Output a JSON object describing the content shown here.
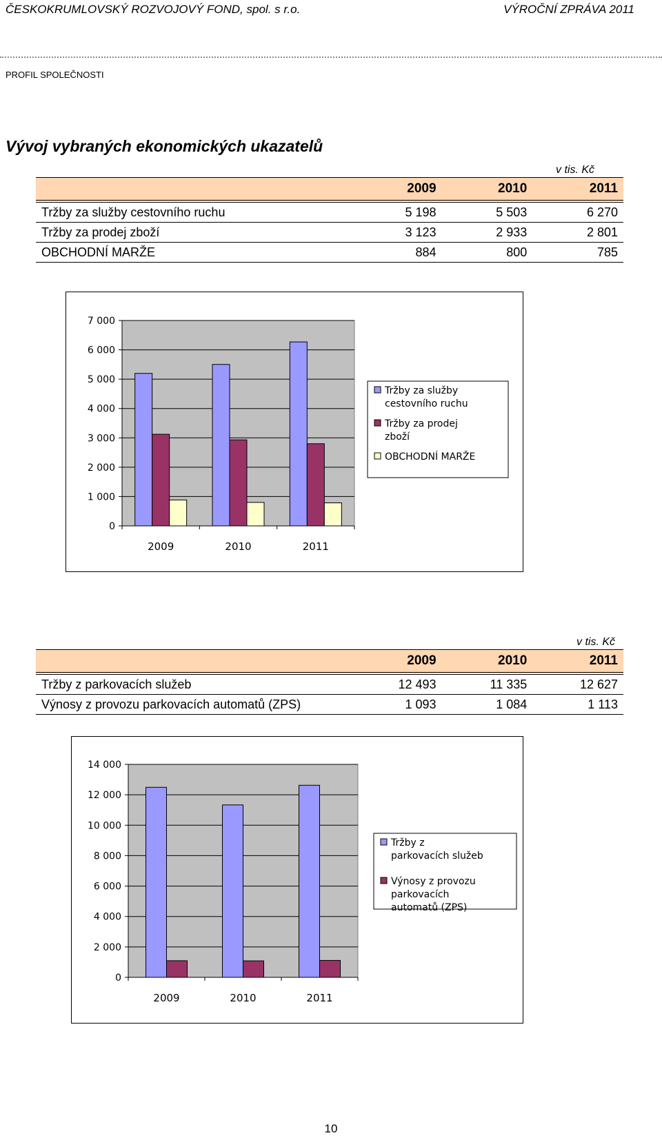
{
  "header": {
    "left": "ČESKOKRUMLOVSKÝ ROZVOJOVÝ FOND, spol. s r.o.",
    "right": "VÝROČNÍ ZPRÁVA 2011"
  },
  "section_label": "PROFIL SPOLEČNOSTI",
  "title": "Vývoj vybraných ekonomických ukazatelů",
  "table1": {
    "units": "v tis. Kč",
    "years": [
      "2009",
      "2010",
      "2011"
    ],
    "rows": [
      {
        "label": "Tržby za služby cestovního ruchu",
        "values": [
          "5 198",
          "5 503",
          "6 270"
        ]
      },
      {
        "label": "Tržby za prodej zboží",
        "values": [
          "3 123",
          "2 933",
          "2 801"
        ]
      },
      {
        "label": "OBCHODNÍ MARŽE",
        "values": [
          "884",
          "800",
          "785"
        ]
      }
    ]
  },
  "table2": {
    "units": "v tis. Kč",
    "years": [
      "2009",
      "2010",
      "2011"
    ],
    "rows": [
      {
        "label": "Tržby z parkovacích služeb",
        "values": [
          "12 493",
          "11 335",
          "12 627"
        ]
      },
      {
        "label": "Výnosy z provozu parkovacích automatů (ZPS)",
        "values": [
          "1 093",
          "1 084",
          "1 113"
        ]
      }
    ]
  },
  "chart_data": [
    {
      "type": "bar",
      "categories": [
        "2009",
        "2010",
        "2011"
      ],
      "series": [
        {
          "name": "Tržby za služby cestovního ruchu",
          "values": [
            5198,
            5503,
            6270
          ],
          "color": "#9999FF"
        },
        {
          "name": "Tržby za prodej zboží",
          "values": [
            3123,
            2933,
            2801
          ],
          "color": "#993366"
        },
        {
          "name": "OBCHODNÍ MARŽE",
          "values": [
            884,
            800,
            785
          ],
          "color": "#FFFFCC"
        }
      ],
      "ylim": [
        0,
        7000
      ],
      "ytick_labels": [
        "0",
        "1 000",
        "2 000",
        "3 000",
        "4 000",
        "5 000",
        "6 000",
        "7 000"
      ],
      "ytick_values": [
        0,
        1000,
        2000,
        3000,
        4000,
        5000,
        6000,
        7000
      ],
      "plot_background": "#C0C0C0",
      "grid": true,
      "legend": "right"
    },
    {
      "type": "bar",
      "categories": [
        "2009",
        "2010",
        "2011"
      ],
      "series": [
        {
          "name": "Tržby z parkovacích služeb",
          "values": [
            12493,
            11335,
            12627
          ],
          "color": "#9999FF"
        },
        {
          "name": "Výnosy z provozu parkovacích automatů (ZPS)",
          "values": [
            1093,
            1084,
            1113
          ],
          "color": "#993366"
        }
      ],
      "ylim": [
        0,
        14000
      ],
      "ytick_labels": [
        "0",
        "2 000",
        "4 000",
        "6 000",
        "8 000",
        "10 000",
        "12 000",
        "14 000"
      ],
      "ytick_values": [
        0,
        2000,
        4000,
        6000,
        8000,
        10000,
        12000,
        14000
      ],
      "plot_background": "#C0C0C0",
      "grid": true,
      "legend": "right"
    }
  ],
  "page_number": "10"
}
